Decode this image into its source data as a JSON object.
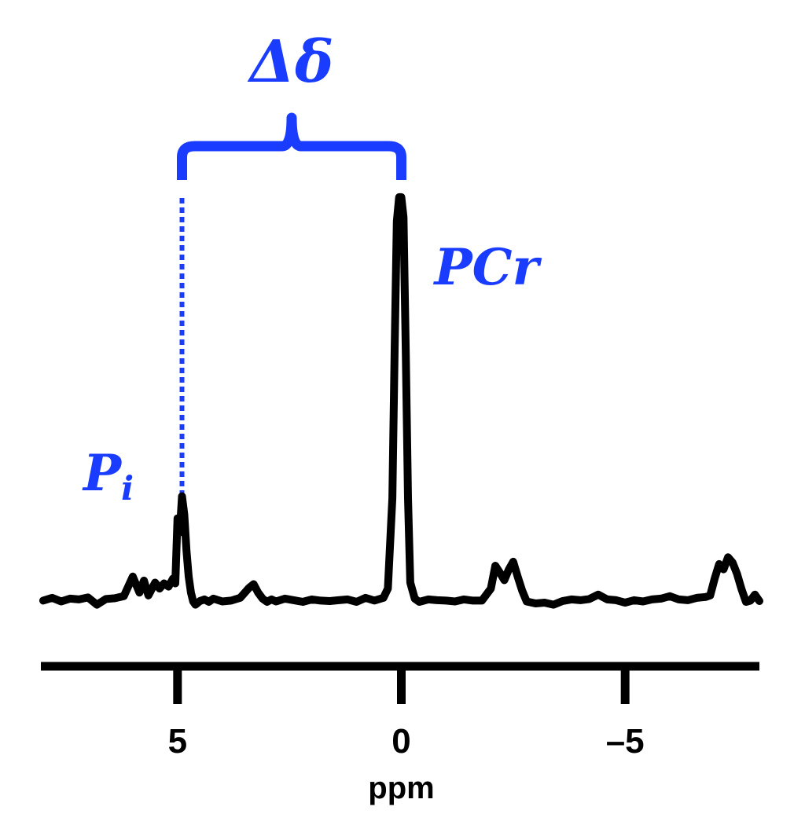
{
  "chart_data": {
    "type": "line",
    "xlabel": "ppm",
    "ylabel": "",
    "title": "",
    "xlim": [
      8,
      -8
    ],
    "ylim": [
      0,
      100
    ],
    "x_reversed": true,
    "grid": false,
    "legend": "none",
    "xticks": [
      {
        "value": 5,
        "label": "5"
      },
      {
        "value": 0,
        "label": "0"
      },
      {
        "value": -5,
        "label": "–5"
      }
    ],
    "annotations": {
      "delta": {
        "text": "Δδ",
        "from_x": 4.9,
        "to_x": 0
      },
      "pcr": {
        "text": "PCr",
        "x": 0
      },
      "pi": {
        "main": "P",
        "sub": "i",
        "x": 4.9
      }
    },
    "colors": {
      "trace": "#000000",
      "annotation": "#1a3cff"
    },
    "series": [
      {
        "x": [
          8.0,
          7.8,
          7.6,
          7.4,
          7.2,
          7.0,
          6.8,
          6.6,
          6.4,
          6.2,
          6.0,
          5.85,
          5.75,
          5.65,
          5.5,
          5.4,
          5.3,
          5.2,
          5.1,
          5.05,
          5.0,
          4.95,
          4.9,
          4.85,
          4.8,
          4.75,
          4.7,
          4.65,
          4.6,
          4.5,
          4.4,
          4.3,
          4.2,
          4.0,
          3.8,
          3.6,
          3.4,
          3.3,
          3.2,
          3.1,
          3.0,
          2.9,
          2.8,
          2.6,
          2.4,
          2.2,
          2.0,
          1.8,
          1.6,
          1.4,
          1.2,
          1.0,
          0.8,
          0.6,
          0.4,
          0.3,
          0.2,
          0.15,
          0.1,
          0.05,
          0.0,
          -0.05,
          -0.1,
          -0.15,
          -0.2,
          -0.3,
          -0.4,
          -0.6,
          -0.8,
          -1.0,
          -1.2,
          -1.4,
          -1.6,
          -1.8,
          -1.9,
          -2.0,
          -2.1,
          -2.2,
          -2.3,
          -2.4,
          -2.5,
          -2.6,
          -2.7,
          -2.8,
          -3.0,
          -3.2,
          -3.4,
          -3.6,
          -3.8,
          -4.0,
          -4.2,
          -4.4,
          -4.6,
          -4.8,
          -5.0,
          -5.2,
          -5.4,
          -5.6,
          -5.8,
          -6.0,
          -6.2,
          -6.4,
          -6.6,
          -6.8,
          -6.9,
          -7.0,
          -7.1,
          -7.2,
          -7.3,
          -7.4,
          -7.5,
          -7.6,
          -7.7,
          -7.8,
          -7.9,
          -8.0
        ],
        "y": [
          0.5,
          1.2,
          0.3,
          1.0,
          0.8,
          1.3,
          -0.5,
          0.9,
          1.1,
          1.6,
          6.5,
          2.5,
          5.5,
          1.8,
          5.0,
          3.5,
          4.8,
          4.0,
          6.0,
          4.8,
          21.0,
          17.5,
          26.5,
          22.0,
          13.0,
          6.5,
          2.5,
          0.3,
          -0.5,
          0.4,
          0.8,
          0.2,
          1.0,
          0.3,
          0.5,
          1.2,
          3.7,
          4.6,
          2.5,
          1.0,
          0.2,
          0.8,
          0.3,
          1.0,
          0.6,
          0.2,
          0.8,
          0.5,
          0.4,
          0.6,
          0.8,
          0.2,
          1.2,
          0.5,
          1.2,
          3.5,
          26.0,
          63.0,
          95.0,
          101.0,
          101.0,
          96.0,
          62.0,
          26.0,
          5.0,
          1.0,
          0.2,
          0.8,
          0.6,
          0.5,
          0.3,
          0.8,
          0.5,
          0.5,
          2.0,
          3.5,
          9.2,
          7.5,
          5.6,
          8.2,
          10.2,
          6.5,
          3.0,
          0.3,
          -0.2,
          0.0,
          -0.5,
          0.4,
          0.8,
          0.6,
          0.9,
          2.0,
          0.8,
          0.6,
          0.0,
          0.6,
          0.3,
          0.8,
          1.0,
          1.6,
          0.8,
          0.6,
          1.2,
          1.4,
          1.8,
          6.0,
          9.6,
          8.3,
          11.3,
          10.0,
          7.2,
          3.4,
          0.2,
          0.5,
          2.0,
          0.4
        ]
      }
    ]
  }
}
